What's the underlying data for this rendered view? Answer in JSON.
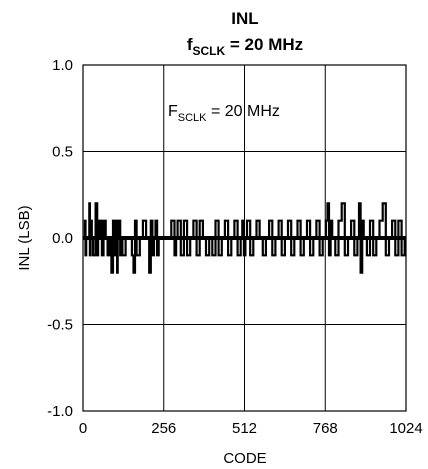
{
  "chart_data": {
    "type": "line",
    "title": "INL",
    "subtitle": {
      "prefix": "f",
      "sub": "SCLK",
      "suffix": " = 20 MHz"
    },
    "xlabel": "CODE",
    "ylabel": "INL (LSB)",
    "xlim": [
      0,
      1024
    ],
    "ylim": [
      -1.0,
      1.0
    ],
    "xticks": [
      0,
      256,
      512,
      768,
      1024
    ],
    "xtick_labels": [
      "0",
      "256",
      "512",
      "768",
      "1024"
    ],
    "yticks": [
      1.0,
      0.5,
      0.0,
      -0.5,
      -1.0
    ],
    "ytick_labels": [
      "1.0",
      "0.5",
      "0.0",
      "-0.5",
      "-1.0"
    ],
    "grid": true,
    "annotation": {
      "prefix": "F",
      "sub": "SCLK",
      "suffix": " = 20 MHz"
    },
    "series": [
      {
        "color": "#000000",
        "x": [
          0,
          6,
          8,
          10,
          20,
          22,
          24,
          28,
          32,
          40,
          45,
          48,
          52,
          55,
          60,
          65,
          72,
          78,
          85,
          90,
          95,
          100,
          105,
          108,
          110,
          115,
          118,
          122,
          125,
          135,
          140,
          150,
          155,
          160,
          165,
          170,
          180,
          190,
          200,
          210,
          215,
          220,
          225,
          230,
          235,
          240,
          250,
          260,
          270,
          280,
          290,
          295,
          300,
          310,
          320,
          330,
          340,
          350,
          360,
          370,
          380,
          390,
          400,
          410,
          420,
          430,
          440,
          450,
          460,
          470,
          480,
          490,
          500,
          505,
          510,
          515,
          520,
          530,
          540,
          550,
          560,
          570,
          580,
          590,
          600,
          610,
          620,
          630,
          640,
          650,
          660,
          670,
          680,
          690,
          700,
          710,
          720,
          730,
          740,
          750,
          760,
          770,
          775,
          780,
          785,
          790,
          800,
          810,
          820,
          830,
          840,
          850,
          860,
          870,
          875,
          880,
          885,
          890,
          900,
          910,
          920,
          930,
          940,
          950,
          960,
          970,
          980,
          990,
          1000,
          1010,
          1020,
          1024
        ],
        "y": [
          0.0,
          0.1,
          -0.1,
          0.0,
          0.2,
          -0.1,
          0.1,
          0.0,
          -0.1,
          0.2,
          -0.1,
          0.1,
          0.0,
          0.1,
          -0.1,
          0.1,
          0.0,
          -0.1,
          0.0,
          -0.2,
          0.1,
          -0.1,
          0.1,
          -0.2,
          0.0,
          0.1,
          -0.1,
          0.0,
          -0.1,
          0.0,
          0.0,
          0.0,
          -0.1,
          -0.2,
          0.1,
          -0.1,
          0.0,
          0.1,
          0.0,
          -0.2,
          0.1,
          -0.1,
          0.0,
          0.1,
          -0.1,
          0.0,
          0.0,
          0.0,
          0.0,
          0.1,
          -0.1,
          0.0,
          0.1,
          -0.1,
          0.1,
          -0.1,
          0.0,
          0.1,
          -0.1,
          0.1,
          0.0,
          -0.1,
          0.0,
          -0.1,
          0.1,
          -0.1,
          0.0,
          0.1,
          -0.1,
          0.0,
          0.1,
          -0.1,
          0.0,
          0.1,
          -0.1,
          0.0,
          0.1,
          -0.1,
          0.0,
          0.1,
          0.0,
          -0.1,
          0.0,
          0.1,
          -0.1,
          0.0,
          0.1,
          -0.1,
          0.0,
          0.1,
          -0.1,
          0.0,
          0.1,
          -0.1,
          0.0,
          0.1,
          -0.1,
          0.0,
          0.1,
          -0.1,
          0.0,
          0.1,
          0.2,
          -0.1,
          0.1,
          0.0,
          -0.1,
          0.1,
          0.2,
          -0.1,
          0.0,
          0.1,
          -0.1,
          0.0,
          0.2,
          -0.2,
          0.1,
          0.0,
          -0.1,
          0.1,
          -0.1,
          0.0,
          0.1,
          0.2,
          -0.1,
          0.0,
          0.1,
          -0.1,
          0.1,
          -0.1,
          0.0,
          0.0
        ]
      }
    ]
  }
}
